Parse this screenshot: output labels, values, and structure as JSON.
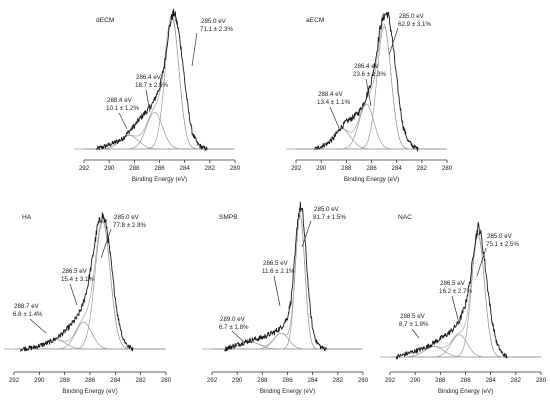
{
  "chart_data": [
    {
      "type": "line",
      "title": "dECM",
      "xlabel": "Binding Energy (eV)",
      "xlim": [
        292,
        280
      ],
      "xticks": [
        292,
        290,
        288,
        286,
        284,
        282,
        280
      ],
      "x_reversed": true,
      "spectrum": {
        "x": [
          291.0,
          290.0,
          289.0,
          288.5,
          288.0,
          287.5,
          287.0,
          286.5,
          286.0,
          285.6,
          285.3,
          285.0,
          284.8,
          284.5,
          284.2,
          284.0,
          283.7,
          283.4,
          283.0,
          282.6,
          282.2
        ],
        "y": [
          0.0,
          0.03,
          0.07,
          0.12,
          0.17,
          0.23,
          0.28,
          0.34,
          0.45,
          0.62,
          0.85,
          0.98,
          1.0,
          0.88,
          0.68,
          0.5,
          0.28,
          0.12,
          0.04,
          0.01,
          0.0
        ]
      },
      "peaks": [
        {
          "center": 285.0,
          "height": 0.96,
          "fwhm": 1.3,
          "label": "285.0 eV",
          "percent": "71.1 ± 2.3%"
        },
        {
          "center": 286.4,
          "height": 0.27,
          "fwhm": 1.5,
          "label": "286.4 eV",
          "percent": "18.7 ± 2.5%"
        },
        {
          "center": 288.4,
          "height": 0.1,
          "fwhm": 1.7,
          "label": "288.4 eV",
          "percent": "10.1 ± 1.2%"
        }
      ]
    },
    {
      "type": "line",
      "title": "aECM",
      "xlabel": "Binding Energy (eV)",
      "xlim": [
        292,
        280
      ],
      "xticks": [
        292,
        290,
        288,
        286,
        284,
        282,
        280
      ],
      "x_reversed": true,
      "spectrum": {
        "x": [
          290.5,
          289.5,
          289.0,
          288.5,
          288.0,
          287.5,
          287.0,
          286.5,
          286.0,
          285.6,
          285.3,
          285.0,
          284.7,
          284.4,
          284.1,
          283.8,
          283.5,
          283.1,
          282.7,
          282.3
        ],
        "y": [
          0.0,
          0.04,
          0.08,
          0.15,
          0.2,
          0.23,
          0.27,
          0.36,
          0.5,
          0.7,
          0.9,
          0.98,
          1.0,
          0.85,
          0.6,
          0.36,
          0.17,
          0.06,
          0.02,
          0.0
        ]
      },
      "peaks": [
        {
          "center": 285.0,
          "height": 0.9,
          "fwhm": 1.3,
          "label": "285.0 eV",
          "percent": "62.9 ± 3.1%"
        },
        {
          "center": 286.4,
          "height": 0.33,
          "fwhm": 1.4,
          "label": "286.4 eV",
          "percent": "23.6 ± 2.3%"
        },
        {
          "center": 288.4,
          "height": 0.15,
          "fwhm": 1.7,
          "label": "288.4 eV",
          "percent": "13.4 ± 1.1%"
        }
      ]
    },
    {
      "type": "line",
      "title": "HA",
      "xlabel": "Binding Energy (eV)",
      "xlim": [
        292,
        280
      ],
      "xticks": [
        292,
        290,
        288,
        286,
        284,
        282,
        280
      ],
      "x_reversed": true,
      "spectrum": {
        "x": [
          291.5,
          290.5,
          289.5,
          289.0,
          288.5,
          288.0,
          287.5,
          287.0,
          286.6,
          286.2,
          285.8,
          285.4,
          285.0,
          284.7,
          284.4,
          284.1,
          283.8,
          283.4,
          283.0,
          282.6
        ],
        "y": [
          0.0,
          0.01,
          0.04,
          0.06,
          0.09,
          0.13,
          0.18,
          0.24,
          0.32,
          0.46,
          0.68,
          0.92,
          1.0,
          0.92,
          0.7,
          0.45,
          0.24,
          0.08,
          0.02,
          0.0
        ]
      },
      "peaks": [
        {
          "center": 285.0,
          "height": 0.95,
          "fwhm": 1.4,
          "label": "285.0 eV",
          "percent": "77.8 ± 2.9%"
        },
        {
          "center": 286.5,
          "height": 0.2,
          "fwhm": 1.5,
          "label": "286.5 eV",
          "percent": "15.4 ± 3.1%"
        },
        {
          "center": 288.7,
          "height": 0.07,
          "fwhm": 1.8,
          "label": "288.7 eV",
          "percent": "6.8 ± 1.4%"
        }
      ]
    },
    {
      "type": "line",
      "title": "SMPB",
      "xlabel": "Binding Energy (eV)",
      "xlim": [
        292,
        280
      ],
      "xticks": [
        292,
        290,
        288,
        286,
        284,
        282,
        280
      ],
      "x_reversed": true,
      "spectrum": {
        "x": [
          291.0,
          290.0,
          289.0,
          288.0,
          287.5,
          287.0,
          286.5,
          286.0,
          285.7,
          285.4,
          285.2,
          285.0,
          284.8,
          284.6,
          284.4,
          284.2,
          284.0,
          283.7,
          283.3,
          282.9
        ],
        "y": [
          0.0,
          0.03,
          0.06,
          0.08,
          0.1,
          0.12,
          0.15,
          0.22,
          0.35,
          0.65,
          0.9,
          1.0,
          0.95,
          0.75,
          0.5,
          0.28,
          0.14,
          0.05,
          0.01,
          0.0
        ]
      },
      "peaks": [
        {
          "center": 285.0,
          "height": 0.93,
          "fwhm": 0.9,
          "label": "285.0 eV",
          "percent": "81.7 ± 1.5%"
        },
        {
          "center": 286.5,
          "height": 0.11,
          "fwhm": 1.4,
          "label": "286.5 eV",
          "percent": "11.6 ± 2.1%"
        },
        {
          "center": 289.0,
          "height": 0.05,
          "fwhm": 1.8,
          "label": "289.0 eV",
          "percent": "6.7 ± 1.8%"
        }
      ]
    },
    {
      "type": "line",
      "title": "NAC",
      "xlabel": "Binding Energy (eV)",
      "xlim": [
        292,
        280
      ],
      "xticks": [
        292,
        290,
        288,
        286,
        284,
        282,
        280
      ],
      "x_reversed": true,
      "spectrum": {
        "x": [
          291.5,
          290.5,
          289.5,
          289.0,
          288.5,
          288.0,
          287.5,
          287.0,
          286.5,
          286.0,
          285.6,
          285.3,
          285.0,
          284.8,
          284.5,
          284.2,
          283.9,
          283.5,
          283.1,
          282.7
        ],
        "y": [
          0.0,
          0.03,
          0.06,
          0.08,
          0.11,
          0.14,
          0.17,
          0.21,
          0.27,
          0.4,
          0.6,
          0.85,
          1.0,
          0.95,
          0.75,
          0.5,
          0.28,
          0.1,
          0.03,
          0.0
        ]
      },
      "peaks": [
        {
          "center": 285.0,
          "height": 0.93,
          "fwhm": 1.2,
          "label": "285.0 eV",
          "percent": "75.1 ± 2.5%"
        },
        {
          "center": 286.5,
          "height": 0.17,
          "fwhm": 1.5,
          "label": "286.5 eV",
          "percent": "16.2 ± 2.7%"
        },
        {
          "center": 288.5,
          "height": 0.08,
          "fwhm": 1.8,
          "label": "288.5 eV",
          "percent": "8.7 ± 1.9%"
        }
      ]
    }
  ],
  "colors": {
    "spectrum": "#1a1a1a",
    "fit": "#9a9a9a",
    "axis": "#333333",
    "text": "#222222"
  }
}
